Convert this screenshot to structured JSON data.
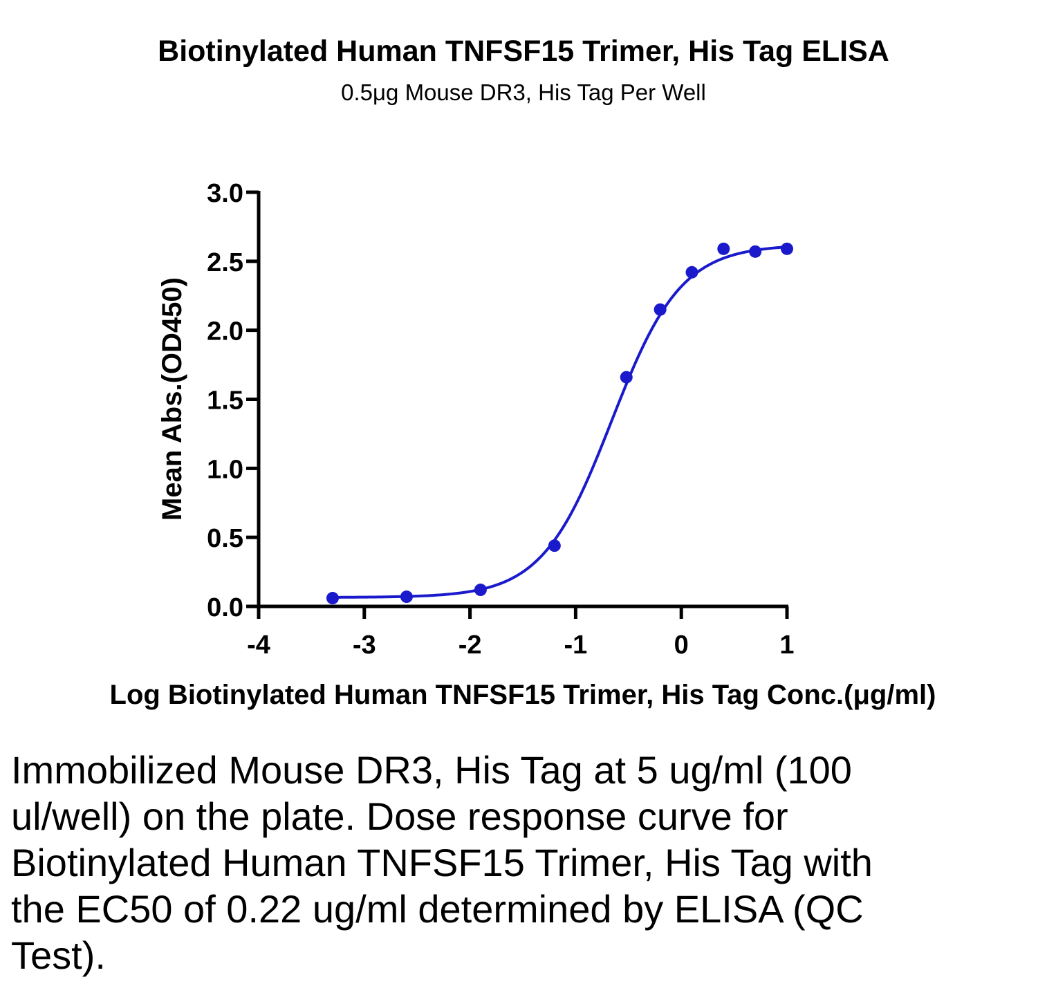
{
  "title": "Biotinylated Human TNFSF15 Trimer, His Tag ELISA",
  "subtitle": "0.5μg Mouse DR3, His Tag Per Well",
  "caption": "Immobilized Mouse DR3, His Tag at 5 ug/ml (100 ul/well) on the plate. Dose response curve for Biotinylated Human TNFSF15 Trimer, His Tag with the EC50 of 0.22 ug/ml determined by ELISA (QC Test).",
  "chart_data": {
    "type": "scatter",
    "title": "Biotinylated Human TNFSF15 Trimer, His Tag ELISA",
    "subtitle": "0.5μg Mouse DR3, His Tag Per Well",
    "xlabel": "Log Biotinylated Human TNFSF15 Trimer, His Tag Conc.(μg/ml)",
    "ylabel": "Mean Abs.(OD450)",
    "xlim": [
      -4,
      1
    ],
    "ylim": [
      0,
      3.0
    ],
    "xticks": [
      "-4",
      "-3",
      "-2",
      "-1",
      "0",
      "1"
    ],
    "yticks": [
      "0.0",
      "0.5",
      "1.0",
      "1.5",
      "2.0",
      "2.5",
      "3.0"
    ],
    "color": "#1a1acc",
    "points": [
      {
        "x": -3.3,
        "y": 0.06
      },
      {
        "x": -2.6,
        "y": 0.07
      },
      {
        "x": -1.9,
        "y": 0.12
      },
      {
        "x": -1.2,
        "y": 0.44
      },
      {
        "x": -0.52,
        "y": 1.66
      },
      {
        "x": -0.2,
        "y": 2.15
      },
      {
        "x": 0.1,
        "y": 2.42
      },
      {
        "x": 0.4,
        "y": 2.59
      },
      {
        "x": 0.7,
        "y": 2.57
      },
      {
        "x": 1.0,
        "y": 2.59
      }
    ],
    "fit": {
      "model": "4PL",
      "bottom": 0.065,
      "top": 2.62,
      "log_ec50": -0.66,
      "hill": 1.32
    }
  }
}
